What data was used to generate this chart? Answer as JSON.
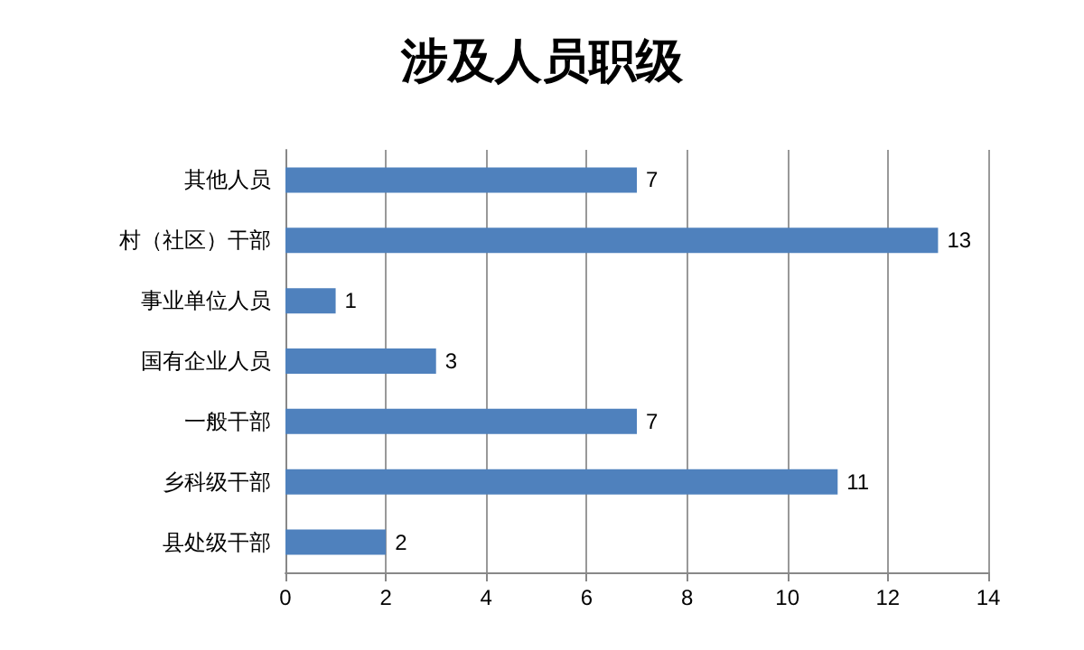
{
  "chart_data": {
    "type": "bar",
    "orientation": "horizontal",
    "title": "涉及人员职级",
    "categories": [
      "其他人员",
      "村（社区）干部",
      "事业单位人员",
      "国有企业人员",
      "一般干部",
      "乡科级干部",
      "县处级干部"
    ],
    "values": [
      7,
      13,
      1,
      3,
      7,
      11,
      2
    ],
    "color": "#4f81bd",
    "xlim": [
      0,
      14
    ],
    "xticks": [
      0,
      2,
      4,
      6,
      8,
      10,
      12,
      14
    ],
    "grid": "x",
    "data_labels": true
  }
}
